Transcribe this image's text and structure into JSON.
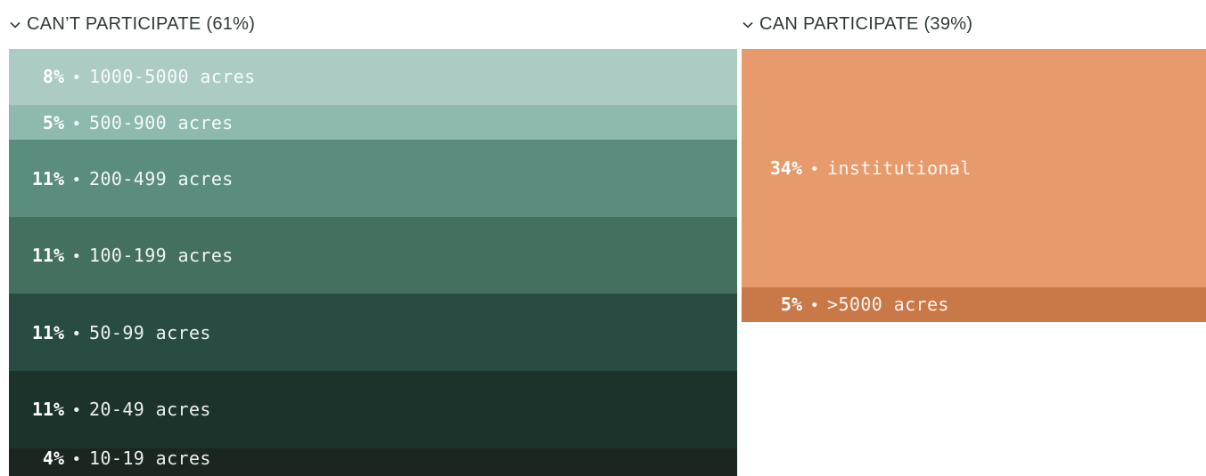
{
  "chart_data": {
    "type": "bar",
    "groups": [
      {
        "header": "CAN’T PARTICIPATE (61%)",
        "items": [
          {
            "pct": "8%",
            "label": "1000-5000 acres",
            "value": 8,
            "color": "#abcbc4"
          },
          {
            "pct": "5%",
            "label": "500-900 acres",
            "value": 5,
            "color": "#8db9ae"
          },
          {
            "pct": "11%",
            "label": "200-499 acres",
            "value": 11,
            "color": "#5b8d7f"
          },
          {
            "pct": "11%",
            "label": "100-199 acres",
            "value": 11,
            "color": "#447060"
          },
          {
            "pct": "11%",
            "label": "50-99 acres",
            "value": 11,
            "color": "#284c43"
          },
          {
            "pct": "11%",
            "label": "20-49 acres",
            "value": 11,
            "color": "#1b332b"
          },
          {
            "pct": "4%",
            "label": "10-19 acres",
            "value": 4,
            "color": "#1b2621"
          }
        ]
      },
      {
        "header": "CAN PARTICIPATE (39%)",
        "items": [
          {
            "pct": "34%",
            "label": "institutional",
            "value": 34,
            "color": "#e79a6b"
          },
          {
            "pct": "5%",
            "label": ">5000 acres",
            "value": 5,
            "color": "#c97848"
          }
        ]
      }
    ]
  }
}
